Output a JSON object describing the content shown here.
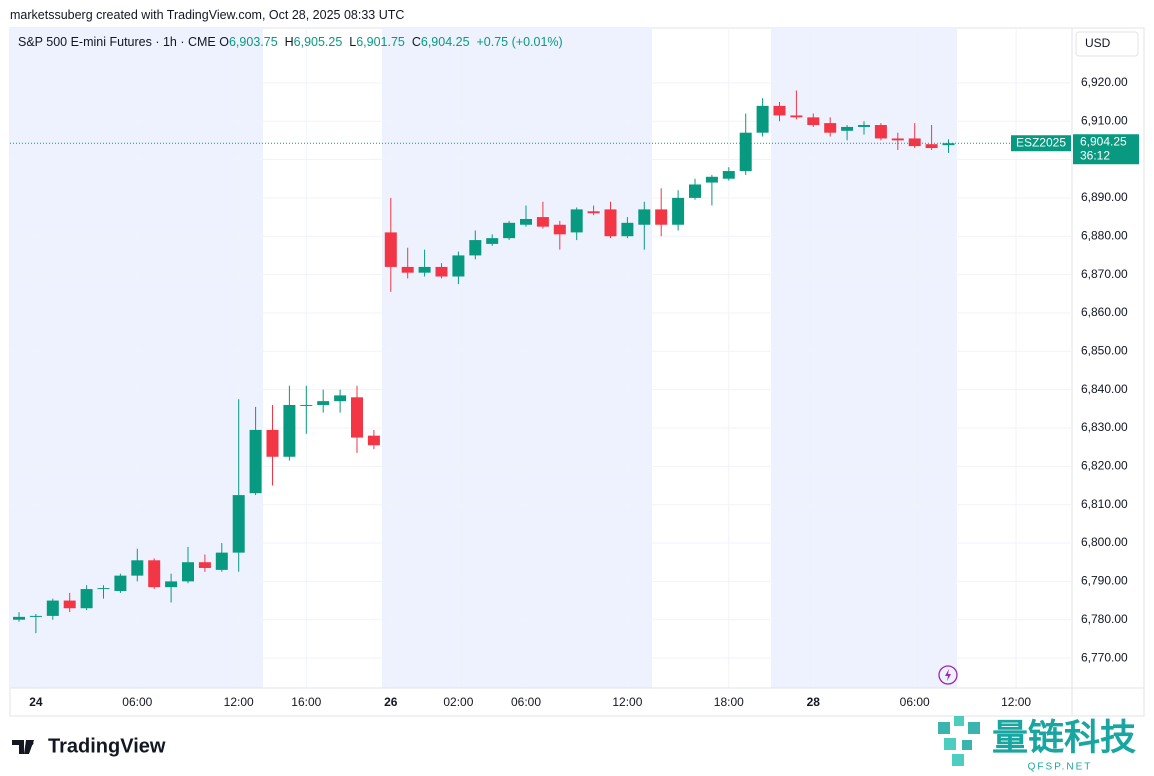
{
  "credit": "marketssuberg created with TradingView.com, Oct 28, 2025 08:33 UTC",
  "header": {
    "symbol": "S&P 500 E-mini Futures · 1h · CME",
    "o": "O",
    "open": "6,903.75",
    "h": "H",
    "high": "6,905.25",
    "l": "L",
    "low": "6,901.75",
    "c": "C",
    "close": "6,904.25",
    "change": "+0.75 (+0.01%)"
  },
  "currency": "USD",
  "brand": "TradingView",
  "watermark": {
    "name": "量链科技",
    "site": "QFSP.NET"
  },
  "chart_data": {
    "type": "candlestick",
    "up_color": "#089981",
    "down_color": "#f23645",
    "categories": [
      null,
      "24",
      null,
      null,
      null,
      null,
      null,
      "06:00",
      null,
      null,
      null,
      null,
      null,
      "12:00",
      null,
      null,
      null,
      "16:00",
      null,
      null,
      null,
      null,
      "26",
      null,
      null,
      null,
      "02:00",
      null,
      null,
      null,
      "06:00",
      null,
      null,
      null,
      null,
      null,
      "12:00",
      null,
      null,
      null,
      null,
      null,
      "18:00",
      null,
      null,
      null,
      null,
      "28",
      null,
      null,
      null,
      null,
      null,
      "06:00",
      null,
      null,
      null,
      null,
      null,
      "12:00"
    ],
    "open": [
      6780,
      6780.75,
      6781,
      6785,
      6783,
      6788,
      6787.5,
      6791.5,
      6795.5,
      6788.5,
      6790,
      6795,
      6793,
      6797.5,
      6813,
      6829.5,
      6822.5,
      6835.75,
      6836,
      6837,
      6838,
      6828,
      6881,
      6872,
      6870.5,
      6872,
      6869.5,
      6875,
      6878,
      6879.5,
      6883,
      6885,
      6883,
      6881,
      6886.5,
      6887,
      6880,
      6883,
      6887,
      6883,
      6890,
      6894,
      6895,
      6897,
      6907,
      6914,
      6911.5,
      6911,
      6909.5,
      6907.5,
      6908.5,
      6909,
      6905.5,
      6905.5,
      6904,
      6903.75,
      null,
      null,
      null,
      null
    ],
    "high": [
      6782,
      6781.5,
      6785.5,
      6787,
      6789,
      6789,
      6792,
      6798.5,
      6796,
      6792,
      6799,
      6797,
      6800,
      6837.5,
      6835.5,
      6836,
      6841,
      6841,
      6840,
      6840,
      6841,
      6829.5,
      6890,
      6877,
      6876.5,
      6873,
      6876,
      6881.5,
      6880.5,
      6884,
      6888,
      6889,
      6884,
      6887.5,
      6888,
      6889,
      6885,
      6889,
      6892.5,
      6892,
      6895,
      6896,
      6898,
      6912,
      6916,
      6915,
      6918,
      6912,
      6911,
      6909,
      6910,
      6909.5,
      6907,
      6909.5,
      6909,
      6905.25,
      null,
      null,
      null,
      null
    ],
    "low": [
      6779.5,
      6776.5,
      6780,
      6782,
      6782.5,
      6785.5,
      6787,
      6790,
      6788,
      6784.5,
      6789.5,
      6792.5,
      6792.5,
      6792.5,
      6812.5,
      6815,
      6821.5,
      6828.5,
      6834,
      6834,
      6823.5,
      6824.5,
      6865.5,
      6869,
      6869.5,
      6869,
      6867.5,
      6874,
      6877.5,
      6879,
      6882.5,
      6882,
      6876.5,
      6879,
      6885.5,
      6879.5,
      6879.5,
      6876.5,
      6880,
      6881.5,
      6889.5,
      6888,
      6894.5,
      6896,
      6906,
      6910,
      6910.5,
      6908.5,
      6906,
      6905,
      6906.5,
      6905,
      6902.5,
      6903,
      6902.5,
      6901.75,
      null,
      null,
      null,
      null
    ],
    "close": [
      6780.75,
      6781,
      6785,
      6783,
      6788,
      6788.25,
      6791.5,
      6795.5,
      6788.5,
      6790,
      6795,
      6793.5,
      6797.5,
      6812.5,
      6829.5,
      6822.5,
      6836,
      6836,
      6837,
      6838.5,
      6827.5,
      6825.5,
      6872,
      6870.5,
      6872,
      6869.5,
      6875,
      6879,
      6879.5,
      6883.5,
      6884.5,
      6882.5,
      6880.5,
      6887,
      6886,
      6880,
      6883.5,
      6887,
      6883,
      6890,
      6893.5,
      6895.5,
      6897,
      6907,
      6914,
      6911.5,
      6911,
      6909,
      6907,
      6908.5,
      6909,
      6905.5,
      6905,
      6903.5,
      6903,
      6904.25,
      null,
      null,
      null,
      null
    ],
    "ylim": [
      6762.2,
      6934.3
    ],
    "yticks": [
      {
        "value": 6770,
        "label": "6,770.00"
      },
      {
        "value": 6780,
        "label": "6,780.00"
      },
      {
        "value": 6790,
        "label": "6,790.00"
      },
      {
        "value": 6800,
        "label": "6,800.00"
      },
      {
        "value": 6810,
        "label": "6,810.00"
      },
      {
        "value": 6820,
        "label": "6,820.00"
      },
      {
        "value": 6830,
        "label": "6,830.00"
      },
      {
        "value": 6840,
        "label": "6,840.00"
      },
      {
        "value": 6850,
        "label": "6,850.00"
      },
      {
        "value": 6860,
        "label": "6,860.00"
      },
      {
        "value": 6870,
        "label": "6,870.00"
      },
      {
        "value": 6880,
        "label": "6,880.00"
      },
      {
        "value": 6890,
        "label": "6,890.00"
      },
      {
        "value": 6900,
        "label": "6,900.00"
      },
      {
        "value": 6910,
        "label": "6,910.00"
      },
      {
        "value": 6920,
        "label": "6,920.00"
      }
    ],
    "last_price": {
      "value": 6904.25,
      "label": "6,904.25"
    },
    "contract": "ESZ2025",
    "countdown": "36:12",
    "grid": true
  }
}
